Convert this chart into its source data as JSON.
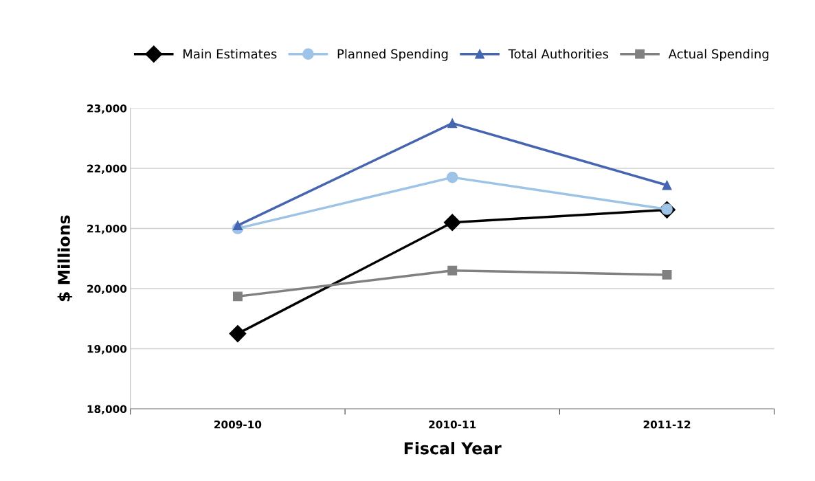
{
  "chart_data": {
    "type": "line",
    "xlabel": "Fiscal Year",
    "ylabel": "$ Millions",
    "categories": [
      "2009-10",
      "2010-11",
      "2011-12"
    ],
    "series": [
      {
        "name": "Main Estimates",
        "color": "#000000",
        "marker": "diamond",
        "values": [
          19250,
          21100,
          21310
        ]
      },
      {
        "name": "Planned Spending",
        "color": "#9dc3e6",
        "marker": "circle",
        "values": [
          21000,
          21850,
          21320
        ]
      },
      {
        "name": "Total Authorities",
        "color": "#4565b0",
        "marker": "triangle",
        "values": [
          21050,
          22750,
          21720
        ]
      },
      {
        "name": "Actual Spending",
        "color": "#808080",
        "marker": "square",
        "values": [
          19870,
          20300,
          20230
        ]
      }
    ],
    "ylim": [
      18000,
      23000
    ],
    "yticks": [
      {
        "value": 18000,
        "label": "18,000"
      },
      {
        "value": 19000,
        "label": "19,000"
      },
      {
        "value": 20000,
        "label": "20,000"
      },
      {
        "value": 21000,
        "label": "21,000"
      },
      {
        "value": 22000,
        "label": "22,000"
      },
      {
        "value": 23000,
        "label": "23,000"
      }
    ],
    "grid": "y",
    "legend": "top",
    "line_style": "solid"
  }
}
